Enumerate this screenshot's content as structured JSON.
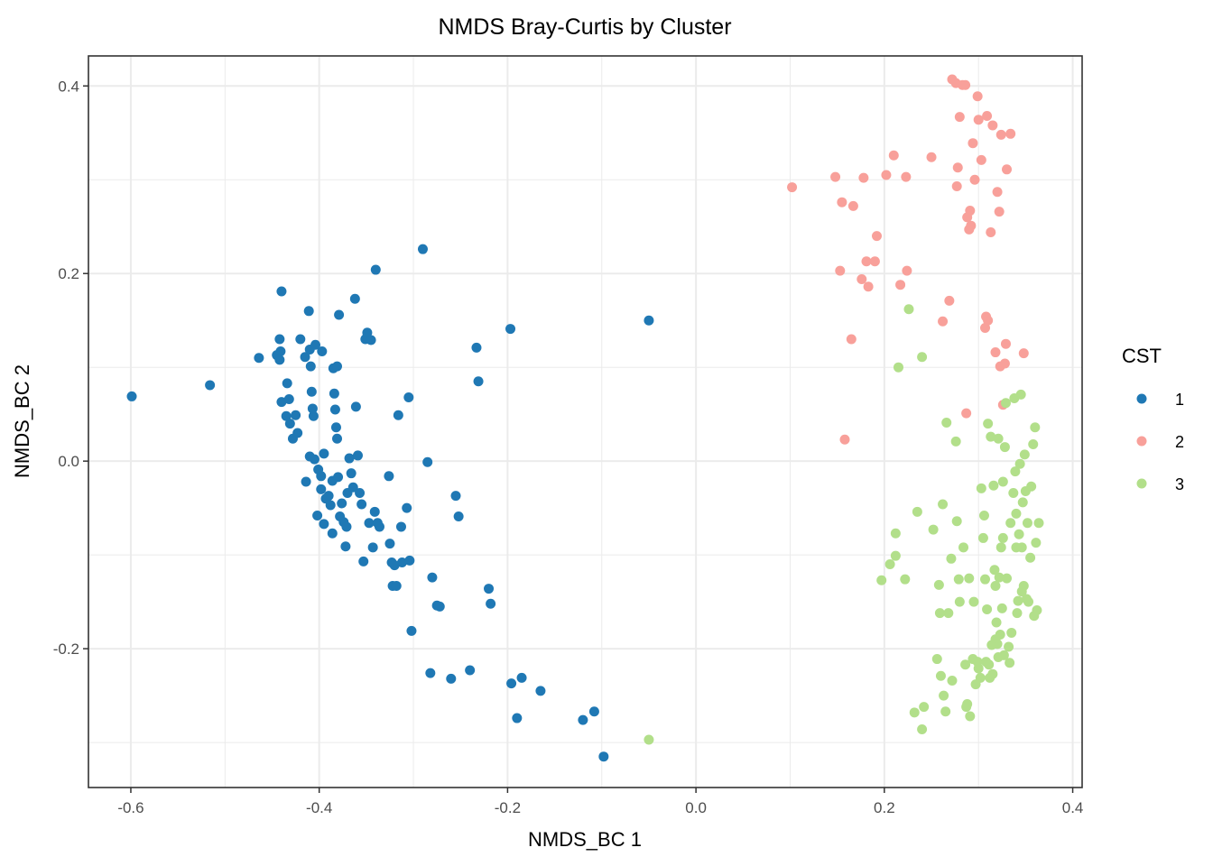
{
  "chart_data": {
    "type": "scatter",
    "title": "NMDS Bray-Curtis by Cluster",
    "xlabel": "NMDS_BC 1",
    "ylabel": "NMDS_BC 2",
    "xlim": [
      -0.645,
      0.41
    ],
    "ylim": [
      -0.348,
      0.432
    ],
    "x_ticks": [
      -0.6,
      -0.4,
      -0.2,
      0.0,
      0.2,
      0.4
    ],
    "x_tick_labels": [
      "-0.6",
      "-0.4",
      "-0.2",
      "0.0",
      "0.2",
      "0.4"
    ],
    "y_ticks": [
      -0.2,
      0.0,
      0.2,
      0.4
    ],
    "y_tick_labels": [
      "-0.2",
      "0.0",
      "0.2",
      "0.4"
    ],
    "grid": true,
    "legend": {
      "title": "CST",
      "position": "right"
    },
    "series": [
      {
        "name": "1",
        "color": "#1f78b4",
        "points": [
          [
            -0.599,
            0.069
          ],
          [
            -0.516,
            0.081
          ],
          [
            -0.464,
            0.11
          ],
          [
            -0.445,
            0.113
          ],
          [
            -0.442,
            0.13
          ],
          [
            -0.441,
            0.117
          ],
          [
            -0.442,
            0.108
          ],
          [
            -0.44,
            0.181
          ],
          [
            -0.44,
            0.063
          ],
          [
            -0.435,
            0.048
          ],
          [
            -0.434,
            0.083
          ],
          [
            -0.432,
            0.066
          ],
          [
            -0.431,
            0.04
          ],
          [
            -0.428,
            0.024
          ],
          [
            -0.425,
            0.049
          ],
          [
            -0.423,
            0.03
          ],
          [
            -0.42,
            0.13
          ],
          [
            -0.415,
            0.111
          ],
          [
            -0.411,
            0.16
          ],
          [
            -0.41,
            0.119
          ],
          [
            -0.409,
            0.101
          ],
          [
            -0.408,
            0.074
          ],
          [
            -0.407,
            0.056
          ],
          [
            -0.406,
            0.048
          ],
          [
            -0.404,
            0.124
          ],
          [
            -0.41,
            0.005
          ],
          [
            -0.405,
            0.002
          ],
          [
            -0.401,
            -0.009
          ],
          [
            -0.398,
            -0.016
          ],
          [
            -0.398,
            -0.03
          ],
          [
            -0.397,
            0.117
          ],
          [
            -0.395,
            0.008
          ],
          [
            -0.393,
            -0.04
          ],
          [
            -0.39,
            -0.037
          ],
          [
            -0.388,
            -0.047
          ],
          [
            -0.386,
            -0.021
          ],
          [
            -0.385,
            0.099
          ],
          [
            -0.384,
            0.072
          ],
          [
            -0.383,
            0.055
          ],
          [
            -0.382,
            0.036
          ],
          [
            -0.381,
            0.024
          ],
          [
            -0.38,
            -0.017
          ],
          [
            -0.379,
            0.156
          ],
          [
            -0.378,
            -0.059
          ],
          [
            -0.376,
            -0.045
          ],
          [
            -0.374,
            -0.065
          ],
          [
            -0.372,
            -0.091
          ],
          [
            -0.37,
            -0.034
          ],
          [
            -0.368,
            0.003
          ],
          [
            -0.366,
            -0.013
          ],
          [
            -0.364,
            -0.028
          ],
          [
            -0.362,
            0.173
          ],
          [
            -0.361,
            0.058
          ],
          [
            -0.359,
            0.006
          ],
          [
            -0.357,
            -0.034
          ],
          [
            -0.355,
            -0.046
          ],
          [
            -0.353,
            -0.107
          ],
          [
            -0.351,
            0.13
          ],
          [
            -0.35,
            0.131
          ],
          [
            -0.349,
            0.137
          ],
          [
            -0.347,
            -0.066
          ],
          [
            -0.345,
            0.129
          ],
          [
            -0.343,
            -0.092
          ],
          [
            -0.341,
            -0.054
          ],
          [
            -0.34,
            0.204
          ],
          [
            -0.338,
            -0.066
          ],
          [
            -0.326,
            -0.016
          ],
          [
            -0.325,
            -0.088
          ],
          [
            -0.323,
            -0.108
          ],
          [
            -0.322,
            -0.133
          ],
          [
            -0.32,
            -0.111
          ],
          [
            -0.318,
            -0.133
          ],
          [
            -0.316,
            0.049
          ],
          [
            -0.313,
            -0.07
          ],
          [
            -0.312,
            -0.108
          ],
          [
            -0.307,
            -0.05
          ],
          [
            -0.305,
            0.068
          ],
          [
            -0.304,
            -0.106
          ],
          [
            -0.302,
            -0.181
          ],
          [
            -0.29,
            0.226
          ],
          [
            -0.285,
            -0.001
          ],
          [
            -0.282,
            -0.226
          ],
          [
            -0.28,
            -0.124
          ],
          [
            -0.275,
            -0.154
          ],
          [
            -0.272,
            -0.155
          ],
          [
            -0.26,
            -0.232
          ],
          [
            -0.255,
            -0.037
          ],
          [
            -0.252,
            -0.059
          ],
          [
            -0.24,
            -0.223
          ],
          [
            -0.233,
            0.121
          ],
          [
            -0.231,
            0.085
          ],
          [
            -0.22,
            -0.136
          ],
          [
            -0.218,
            -0.152
          ],
          [
            -0.197,
            0.141
          ],
          [
            -0.196,
            -0.237
          ],
          [
            -0.19,
            -0.274
          ],
          [
            -0.185,
            -0.231
          ],
          [
            -0.165,
            -0.245
          ],
          [
            -0.12,
            -0.276
          ],
          [
            -0.108,
            -0.267
          ],
          [
            -0.098,
            -0.315
          ],
          [
            -0.05,
            0.15
          ],
          [
            -0.336,
            -0.07
          ],
          [
            -0.381,
            0.101
          ],
          [
            -0.402,
            -0.058
          ],
          [
            -0.414,
            -0.022
          ],
          [
            -0.395,
            -0.067
          ],
          [
            -0.386,
            -0.077
          ],
          [
            -0.371,
            -0.07
          ]
        ]
      },
      {
        "name": "2",
        "color": "#f8a09a",
        "points": [
          [
            0.102,
            0.292
          ],
          [
            0.148,
            0.303
          ],
          [
            0.153,
            0.203
          ],
          [
            0.155,
            0.276
          ],
          [
            0.158,
            0.023
          ],
          [
            0.165,
            0.13
          ],
          [
            0.167,
            0.272
          ],
          [
            0.176,
            0.194
          ],
          [
            0.178,
            0.302
          ],
          [
            0.181,
            0.213
          ],
          [
            0.183,
            0.186
          ],
          [
            0.19,
            0.213
          ],
          [
            0.192,
            0.24
          ],
          [
            0.202,
            0.305
          ],
          [
            0.21,
            0.326
          ],
          [
            0.217,
            0.188
          ],
          [
            0.223,
            0.303
          ],
          [
            0.224,
            0.203
          ],
          [
            0.25,
            0.324
          ],
          [
            0.262,
            0.149
          ],
          [
            0.269,
            0.171
          ],
          [
            0.272,
            0.407
          ],
          [
            0.276,
            0.403
          ],
          [
            0.277,
            0.293
          ],
          [
            0.278,
            0.313
          ],
          [
            0.28,
            0.367
          ],
          [
            0.283,
            0.401
          ],
          [
            0.286,
            0.401
          ],
          [
            0.287,
            0.051
          ],
          [
            0.288,
            0.26
          ],
          [
            0.292,
            0.251
          ],
          [
            0.294,
            0.339
          ],
          [
            0.296,
            0.3
          ],
          [
            0.299,
            0.389
          ],
          [
            0.3,
            0.364
          ],
          [
            0.303,
            0.321
          ],
          [
            0.307,
            0.142
          ],
          [
            0.308,
            0.154
          ],
          [
            0.31,
            0.15
          ],
          [
            0.313,
            0.244
          ],
          [
            0.315,
            0.358
          ],
          [
            0.318,
            0.116
          ],
          [
            0.32,
            0.287
          ],
          [
            0.322,
            0.266
          ],
          [
            0.323,
            0.101
          ],
          [
            0.324,
            0.348
          ],
          [
            0.326,
            0.06
          ],
          [
            0.328,
            0.104
          ],
          [
            0.329,
            0.125
          ],
          [
            0.33,
            0.311
          ],
          [
            0.334,
            0.349
          ],
          [
            0.348,
            0.115
          ],
          [
            0.29,
            0.247
          ],
          [
            0.291,
            0.267
          ],
          [
            0.309,
            0.368
          ]
        ]
      },
      {
        "name": "3",
        "color": "#b2df8a",
        "points": [
          [
            -0.05,
            -0.297
          ],
          [
            0.197,
            -0.127
          ],
          [
            0.206,
            -0.11
          ],
          [
            0.212,
            -0.077
          ],
          [
            0.212,
            -0.101
          ],
          [
            0.215,
            0.1
          ],
          [
            0.222,
            -0.126
          ],
          [
            0.226,
            0.162
          ],
          [
            0.232,
            -0.268
          ],
          [
            0.235,
            -0.054
          ],
          [
            0.24,
            0.111
          ],
          [
            0.24,
            -0.286
          ],
          [
            0.242,
            -0.262
          ],
          [
            0.252,
            -0.073
          ],
          [
            0.256,
            -0.211
          ],
          [
            0.258,
            -0.132
          ],
          [
            0.259,
            -0.162
          ],
          [
            0.26,
            -0.229
          ],
          [
            0.262,
            -0.046
          ],
          [
            0.263,
            -0.25
          ],
          [
            0.265,
            -0.267
          ],
          [
            0.266,
            0.041
          ],
          [
            0.268,
            -0.162
          ],
          [
            0.271,
            -0.104
          ],
          [
            0.272,
            -0.234
          ],
          [
            0.276,
            0.021
          ],
          [
            0.277,
            -0.064
          ],
          [
            0.279,
            -0.126
          ],
          [
            0.28,
            -0.15
          ],
          [
            0.284,
            -0.092
          ],
          [
            0.286,
            -0.217
          ],
          [
            0.287,
            -0.262
          ],
          [
            0.288,
            -0.259
          ],
          [
            0.29,
            -0.125
          ],
          [
            0.291,
            -0.272
          ],
          [
            0.294,
            -0.211
          ],
          [
            0.295,
            -0.15
          ],
          [
            0.297,
            -0.238
          ],
          [
            0.299,
            -0.214
          ],
          [
            0.3,
            -0.221
          ],
          [
            0.302,
            -0.231
          ],
          [
            0.303,
            -0.029
          ],
          [
            0.305,
            -0.082
          ],
          [
            0.306,
            -0.058
          ],
          [
            0.307,
            -0.126
          ],
          [
            0.308,
            -0.214
          ],
          [
            0.31,
            0.04
          ],
          [
            0.311,
            -0.217
          ],
          [
            0.312,
            -0.231
          ],
          [
            0.313,
            0.026
          ],
          [
            0.315,
            -0.227
          ],
          [
            0.316,
            -0.026
          ],
          [
            0.317,
            -0.116
          ],
          [
            0.318,
            -0.19
          ],
          [
            0.319,
            -0.172
          ],
          [
            0.32,
            -0.195
          ],
          [
            0.321,
            0.024
          ],
          [
            0.322,
            -0.124
          ],
          [
            0.323,
            -0.185
          ],
          [
            0.324,
            -0.092
          ],
          [
            0.325,
            -0.157
          ],
          [
            0.326,
            -0.022
          ],
          [
            0.327,
            -0.207
          ],
          [
            0.328,
            0.015
          ],
          [
            0.329,
            0.062
          ],
          [
            0.33,
            -0.125
          ],
          [
            0.332,
            -0.198
          ],
          [
            0.333,
            -0.215
          ],
          [
            0.334,
            -0.066
          ],
          [
            0.335,
            -0.183
          ],
          [
            0.337,
            -0.034
          ],
          [
            0.338,
            0.067
          ],
          [
            0.339,
            -0.011
          ],
          [
            0.34,
            -0.056
          ],
          [
            0.341,
            -0.162
          ],
          [
            0.342,
            -0.149
          ],
          [
            0.343,
            -0.078
          ],
          [
            0.344,
            -0.003
          ],
          [
            0.345,
            0.071
          ],
          [
            0.346,
            -0.092
          ],
          [
            0.347,
            -0.044
          ],
          [
            0.348,
            -0.133
          ],
          [
            0.349,
            0.007
          ],
          [
            0.35,
            -0.032
          ],
          [
            0.351,
            -0.147
          ],
          [
            0.352,
            -0.066
          ],
          [
            0.353,
            -0.15
          ],
          [
            0.355,
            -0.103
          ],
          [
            0.356,
            -0.027
          ],
          [
            0.358,
            0.018
          ],
          [
            0.359,
            -0.165
          ],
          [
            0.36,
            0.036
          ],
          [
            0.361,
            -0.087
          ],
          [
            0.362,
            -0.159
          ],
          [
            0.364,
            -0.066
          ],
          [
            0.309,
            -0.158
          ],
          [
            0.314,
            -0.196
          ],
          [
            0.318,
            -0.133
          ],
          [
            0.321,
            -0.209
          ],
          [
            0.34,
            -0.092
          ],
          [
            0.346,
            -0.139
          ],
          [
            0.326,
            -0.082
          ]
        ]
      }
    ]
  }
}
